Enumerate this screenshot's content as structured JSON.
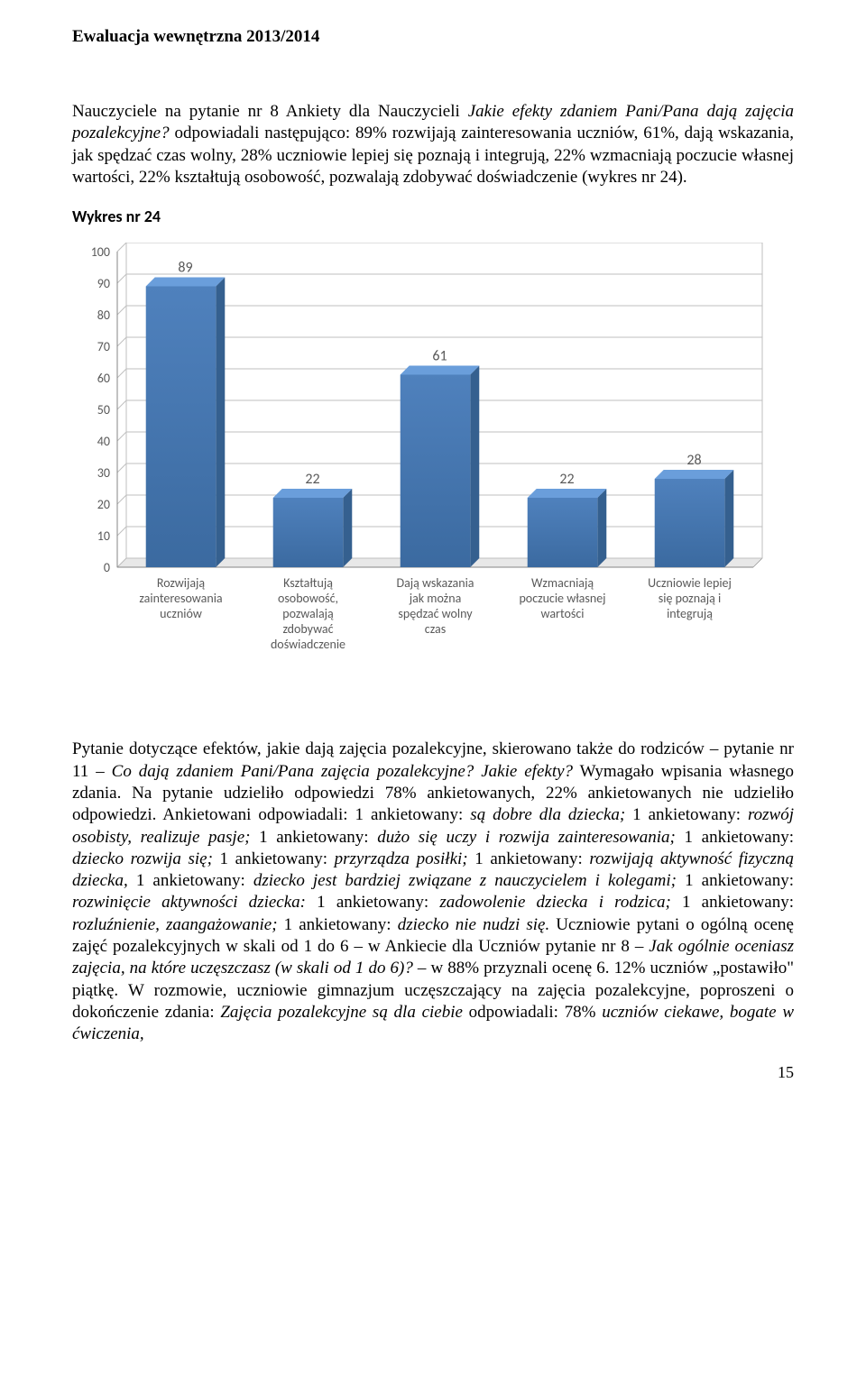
{
  "header": {
    "title": "Ewaluacja wewnętrzna 2013/2014"
  },
  "intro": {
    "p1_pre": "Nauczyciele na pytanie nr 8 Ankiety dla Nauczycieli ",
    "p1_italic": "Jakie efekty zdaniem Pani/Pana dają zajęcia pozalekcyjne?",
    "p1_post": " odpowiadali następująco: 89% rozwijają zainteresowania uczniów, 61%, dają wskazania, jak spędzać czas wolny, 28% uczniowie lepiej się poznają i integrują, 22% wzmacniają poczucie własnej wartości, 22% kształtują osobowość, pozwalają zdobywać doświadczenie (wykres nr 24)."
  },
  "chart": {
    "type": "bar",
    "title": "Wykres nr 24",
    "ylim": [
      0,
      100
    ],
    "ytick_step": 10,
    "yticks": [
      0,
      10,
      20,
      30,
      40,
      50,
      60,
      70,
      80,
      90,
      100
    ],
    "grid_color": "#bfbfbf",
    "axis_color": "#868686",
    "background_color": "#ffffff",
    "bar_top_color": "#6a9edb",
    "bar_front_top": "#4f81bd",
    "bar_front_bottom": "#3b6aa0",
    "bar_side_color": "#35608f",
    "label_color": "#595959",
    "label_fontsize": 14,
    "value_fontsize": 16,
    "bars": [
      {
        "label": [
          "Rozwijają",
          "zainteresowania",
          "uczniów"
        ],
        "value": 89
      },
      {
        "label": [
          "Kształtują",
          "osobowość,",
          "pozwalają",
          "zdobywać",
          "doświadczenie"
        ],
        "value": 22
      },
      {
        "label": [
          "Dają wskazania",
          "jak można",
          "spędzać wolny",
          "czas"
        ],
        "value": 61
      },
      {
        "label": [
          "Wzmacniają",
          "poczucie własnej",
          "wartości"
        ],
        "value": 22
      },
      {
        "label": [
          "Uczniowie lepiej",
          "się poznają i",
          "integrują"
        ],
        "value": 28
      }
    ]
  },
  "body": {
    "p2_a": "Pytanie dotyczące efektów, jakie dają zajęcia pozalekcyjne, skierowano także do rodziców – pytanie nr 11 – ",
    "p2_i1": "Co dają zdaniem Pani/Pana zajęcia pozalekcyjne? Jakie efekty?",
    "p2_b": " Wymagało wpisania własnego zdania. Na pytanie udzieliło odpowiedzi 78% ankietowanych, 22% ankietowanych nie udzieliło odpowiedzi. Ankietowani odpowiadali: 1 ankietowany: ",
    "p2_i2": "są dobre dla dziecka;",
    "p2_c": " 1 ankietowany: ",
    "p2_i3": "rozwój osobisty, realizuje pasje;",
    "p2_d": " 1 ankietowany: ",
    "p2_i4": "dużo się uczy i rozwija zainteresowania;",
    "p2_e": " 1 ankietowany: ",
    "p2_i5": "dziecko rozwija się;",
    "p2_f": " 1 ankietowany: ",
    "p2_i6": "przyrządza posiłki;",
    "p2_g": " 1 ankietowany: ",
    "p2_i7": "rozwijają aktywność fizyczną dziecka,",
    "p2_h": " 1 ankietowany: ",
    "p2_i8": "dziecko jest bardziej związane z nauczycielem i kolegami;",
    "p2_j": " 1 ankietowany: ",
    "p2_i9": "rozwinięcie aktywności dziecka:",
    "p2_k": " 1 ankietowany: ",
    "p2_i10": "zadowolenie dziecka i rodzica;",
    "p2_l": " 1 ankietowany: ",
    "p2_i11": "rozluźnienie, zaangażowanie;",
    "p2_m": " 1 ankietowany: ",
    "p2_i12": "dziecko nie nudzi się.",
    "p2_n": " Uczniowie pytani o ogólną ocenę zajęć pozalekcyjnych w skali od 1 do 6 – w Ankiecie dla Uczniów pytanie nr 8 – ",
    "p2_i13": "Jak ogólnie oceniasz zajęcia, na które uczęszczasz (w skali od 1 do 6)?",
    "p2_o": " – w 88% przyznali ocenę 6. 12% uczniów „postawiło\" piątkę. W rozmowie, uczniowie gimnazjum uczęszczający na zajęcia pozalekcyjne, poproszeni o dokończenie zdania: ",
    "p2_i14": "Zajęcia pozalekcyjne są dla ciebie",
    "p2_p": " odpowiadali: 78% ",
    "p2_i15": "uczniów ciekawe, bogate w ćwiczenia,"
  },
  "page_number": "15"
}
